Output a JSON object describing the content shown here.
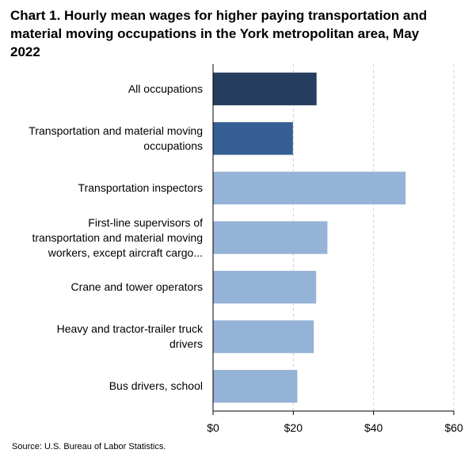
{
  "title": {
    "lines": [
      "Chart 1. Hourly mean wages for higher paying transportation and",
      "material moving occupations in the York metropolitan area, May",
      "2022"
    ]
  },
  "source": "Source: U.S. Bureau of Labor Statistics.",
  "chart_data": {
    "type": "bar",
    "orientation": "horizontal",
    "title": "Chart 1. Hourly mean wages for higher paying transportation and material moving occupations in the York metropolitan area, May 2022",
    "categories": [
      [
        "All occupations"
      ],
      [
        "Transportation and material moving",
        "occupations"
      ],
      [
        "Transportation inspectors"
      ],
      [
        "First-line supervisors of",
        "transportation and material moving",
        "workers, except aircraft cargo..."
      ],
      [
        "Crane and tower operators"
      ],
      [
        "Heavy and tractor-trailer truck",
        "drivers"
      ],
      [
        "Bus drivers, school"
      ]
    ],
    "values": [
      25.8,
      19.9,
      48.0,
      28.5,
      25.7,
      25.1,
      21.0
    ],
    "colors": [
      "#253d5e",
      "#355f92",
      "#95b3d7",
      "#95b3d7",
      "#95b3d7",
      "#95b3d7",
      "#95b3d7"
    ],
    "xlim": [
      0,
      60
    ],
    "xticks": [
      0,
      20,
      40,
      60
    ],
    "xtick_labels": [
      "$0",
      "$20",
      "$40",
      "$60"
    ],
    "grid": true,
    "grid_color": "#d0d0d0",
    "xlabel": "",
    "ylabel": ""
  }
}
